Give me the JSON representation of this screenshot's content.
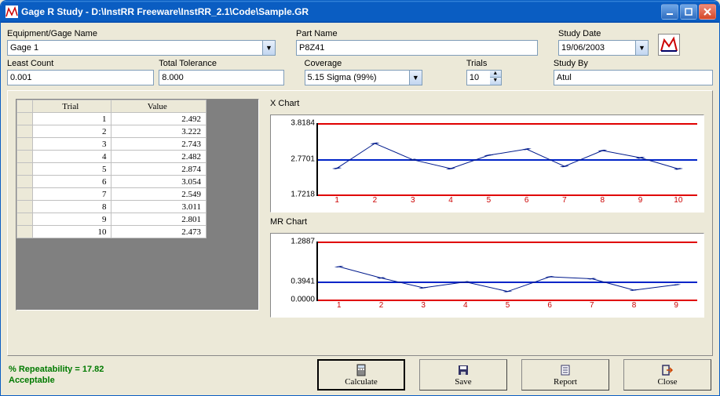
{
  "window": {
    "title": "Gage R Study - D:\\InstRR Freeware\\InstRR_2.1\\Code\\Sample.GR"
  },
  "form": {
    "equipment": {
      "label": "Equipment/Gage Name",
      "value": "Gage 1"
    },
    "partname": {
      "label": "Part Name",
      "value": "P8Z41"
    },
    "studydate": {
      "label": "Study Date",
      "value": "19/06/2003"
    },
    "leastcount": {
      "label": "Least Count",
      "value": "0.001"
    },
    "tolerance": {
      "label": "Total Tolerance",
      "value": "8.000"
    },
    "coverage": {
      "label": "Coverage",
      "value": "5.15 Sigma (99%)"
    },
    "trials": {
      "label": "Trials",
      "value": "10"
    },
    "studyby": {
      "label": "Study By",
      "value": "Atul"
    }
  },
  "table": {
    "col1": "Trial",
    "col2": "Value",
    "rows": [
      [
        "1",
        "2.492"
      ],
      [
        "2",
        "3.222"
      ],
      [
        "3",
        "2.743"
      ],
      [
        "4",
        "2.482"
      ],
      [
        "5",
        "2.874"
      ],
      [
        "6",
        "3.054"
      ],
      [
        "7",
        "2.549"
      ],
      [
        "8",
        "3.011"
      ],
      [
        "9",
        "2.801"
      ],
      [
        "10",
        "2.473"
      ]
    ]
  },
  "xchart": {
    "title": "X Chart",
    "ucl": 3.8184,
    "cl": 2.7701,
    "lcl": 1.7218,
    "ylabels": [
      "3.8184",
      "2.7701",
      "1.7218"
    ],
    "xlabels": [
      "1",
      "2",
      "3",
      "4",
      "5",
      "6",
      "7",
      "8",
      "9",
      "10"
    ],
    "values": [
      2.492,
      3.222,
      2.743,
      2.482,
      2.874,
      3.054,
      2.549,
      3.011,
      2.801,
      2.473
    ],
    "line_color": "#001a8c",
    "ucl_color": "#e00000",
    "lcl_color": "#e00000",
    "cl_color": "#0024c8",
    "marker_color": "#001a8c"
  },
  "mrchart": {
    "title": "MR Chart",
    "ucl": 1.2887,
    "cl": 0.3941,
    "lcl": 0.0,
    "ylabels": [
      "1.2887",
      "0.3941",
      "0.0000"
    ],
    "xlabels": [
      "1",
      "2",
      "3",
      "4",
      "5",
      "6",
      "7",
      "8",
      "9"
    ],
    "values": [
      0.73,
      0.479,
      0.261,
      0.392,
      0.18,
      0.505,
      0.462,
      0.21,
      0.328
    ],
    "line_color": "#001a8c",
    "ucl_color": "#e00000",
    "lcl_color": "#e00000",
    "cl_color": "#0024c8",
    "marker_color": "#001a8c"
  },
  "status": {
    "line1": "% Repeatability = 17.82",
    "line2": "Acceptable"
  },
  "buttons": {
    "calculate": "Calculate",
    "save": "Save",
    "report": "Report",
    "close": "Close"
  }
}
